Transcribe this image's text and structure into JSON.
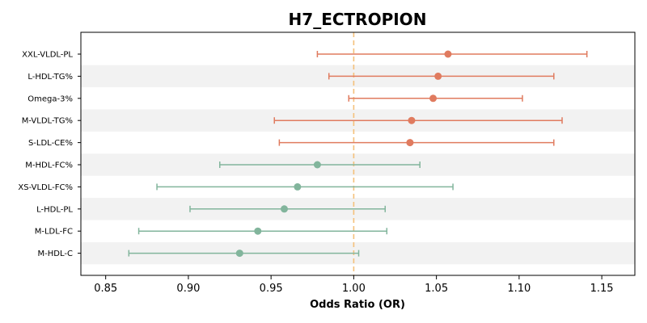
{
  "chart_data": {
    "type": "forest",
    "title": "H7_ECTROPION",
    "xlabel": "Odds Ratio (OR)",
    "xlim": [
      0.835,
      1.17
    ],
    "xticks": [
      "0.85",
      "0.90",
      "0.95",
      "1.00",
      "1.05",
      "1.10",
      "1.15"
    ],
    "reference_line": 1.0,
    "colors": {
      "positive": "#e07b5f",
      "negative": "#82b59c",
      "reference": "#f5c07a",
      "band": "#f2f2f2"
    },
    "rows": [
      {
        "label": "XXL-VLDL-PL",
        "or": 1.057,
        "lo": 0.978,
        "hi": 1.141
      },
      {
        "label": "L-HDL-TG%",
        "or": 1.051,
        "lo": 0.985,
        "hi": 1.121
      },
      {
        "label": "Omega-3%",
        "or": 1.048,
        "lo": 0.997,
        "hi": 1.102
      },
      {
        "label": "M-VLDL-TG%",
        "or": 1.035,
        "lo": 0.952,
        "hi": 1.126
      },
      {
        "label": "S-LDL-CE%",
        "or": 1.034,
        "lo": 0.955,
        "hi": 1.121
      },
      {
        "label": "M-HDL-FC%",
        "or": 0.978,
        "lo": 0.919,
        "hi": 1.04
      },
      {
        "label": "XS-VLDL-FC%",
        "or": 0.966,
        "lo": 0.881,
        "hi": 1.06
      },
      {
        "label": "L-HDL-PL",
        "or": 0.958,
        "lo": 0.901,
        "hi": 1.019
      },
      {
        "label": "M-LDL-FC",
        "or": 0.942,
        "lo": 0.87,
        "hi": 1.02
      },
      {
        "label": "M-HDL-C",
        "or": 0.931,
        "lo": 0.864,
        "hi": 1.003
      }
    ]
  }
}
